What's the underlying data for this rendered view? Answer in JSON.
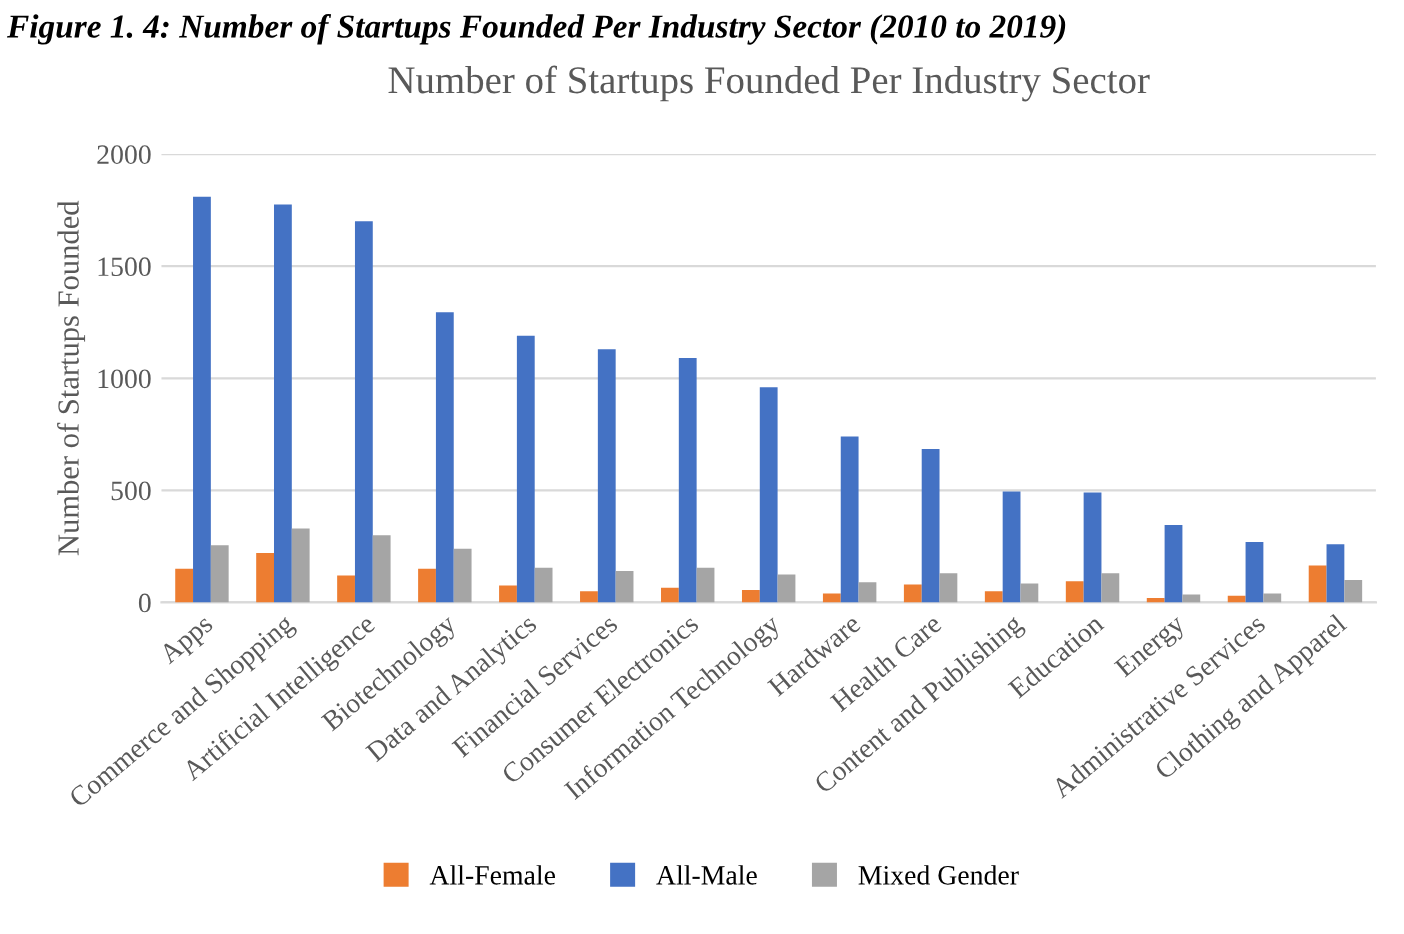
{
  "chart_data": {
    "type": "bar",
    "title": "Number of Startups Founded Per Industry Sector",
    "ylabel": "Number of Startups Founded",
    "annotations": [
      "Figure 1. 4: Number of Startups Founded Per Industry Sector (2010 to 2019)"
    ],
    "categories": [
      "Apps",
      "Commerce and Shopping",
      "Artificial Intelligence",
      "Biotechnology",
      "Data and Analytics",
      "Financial Services",
      "Consumer Electronics",
      "Information Technology",
      "Hardware",
      "Health Care",
      "Content and Publishing",
      "Education",
      "Energy",
      "Administrative Services",
      "Clothing and Apparel"
    ],
    "series": [
      {
        "name": "All-Female",
        "color": "#ed7d31",
        "values": [
          150,
          220,
          120,
          150,
          75,
          50,
          65,
          55,
          40,
          80,
          50,
          95,
          20,
          30,
          165
        ]
      },
      {
        "name": "All-Male",
        "color": "#4472c4",
        "values": [
          1810,
          1775,
          1700,
          1295,
          1190,
          1130,
          1090,
          960,
          740,
          685,
          495,
          490,
          345,
          270,
          260
        ]
      },
      {
        "name": "Mixed Gender",
        "color": "#a5a5a5",
        "values": [
          255,
          330,
          300,
          240,
          155,
          140,
          155,
          125,
          90,
          130,
          85,
          130,
          35,
          40,
          100
        ]
      }
    ],
    "ylim": [
      0,
      2000
    ],
    "yticks": [
      0,
      500,
      1000,
      1500,
      2000
    ],
    "grid": "y",
    "legend": "bottom"
  }
}
